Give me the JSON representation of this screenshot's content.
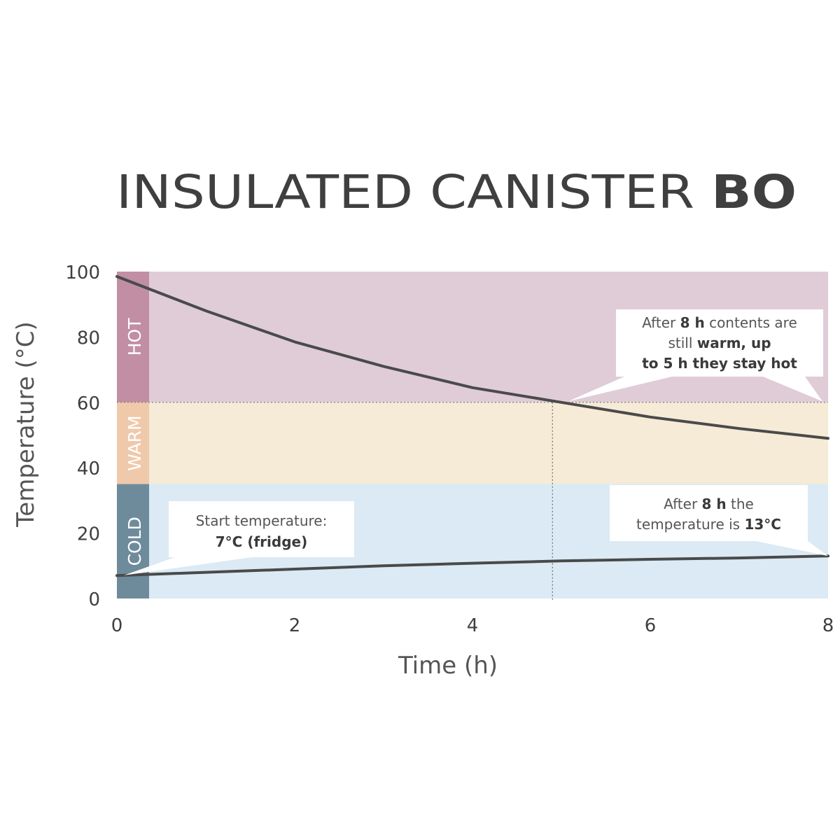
{
  "chart_data": {
    "type": "line",
    "title": {
      "main": "INSULATED CANISTER",
      "brand": "BO"
    },
    "xlabel": "Time (h)",
    "ylabel": "Temperature (°C)",
    "xlim": [
      0,
      8
    ],
    "ylim": [
      0,
      100
    ],
    "x_ticks": [
      "0",
      "2",
      "4",
      "6",
      "8"
    ],
    "y_ticks": [
      "0",
      "20",
      "40",
      "60",
      "80",
      "100"
    ],
    "grid": false,
    "zones": [
      {
        "label": "HOT",
        "from": 60,
        "to": 100,
        "band_color": "#e0ccd6",
        "tab_color": "#c18ea3"
      },
      {
        "label": "WARM",
        "from": 35,
        "to": 60,
        "band_color": "#f5ebd6",
        "tab_color": "#f0c9ab"
      },
      {
        "label": "COLD",
        "from": 0,
        "to": 35,
        "band_color": "#dbeaf4",
        "tab_color": "#6e8b9b"
      }
    ],
    "series": [
      {
        "color": "#4a4a4a",
        "x": [
          0,
          1,
          2,
          3,
          4,
          5,
          6,
          7,
          8
        ],
        "y": [
          98.5,
          88,
          78.5,
          71,
          64.5,
          60,
          55.5,
          52,
          49
        ]
      },
      {
        "color": "#4a4a4a",
        "x": [
          0,
          1,
          2,
          3,
          4,
          5,
          6,
          7,
          8
        ],
        "y": [
          7,
          8,
          9,
          10,
          10.8,
          11.5,
          12,
          12.4,
          13
        ]
      }
    ],
    "reference_lines": [
      {
        "orientation": "horizontal",
        "value": 60,
        "style": "dotted"
      },
      {
        "orientation": "vertical",
        "value": 4.9,
        "style": "dotted"
      }
    ],
    "annotations": [
      {
        "id": "hot",
        "lines": [
          [
            {
              "t": "After ",
              "b": false
            },
            {
              "t": "8 h",
              "b": true
            },
            {
              "t": " contents are",
              "b": false
            }
          ],
          [
            {
              "t": "still ",
              "b": false
            },
            {
              "t": "warm, up",
              "b": true
            }
          ],
          [
            {
              "t": "to 5 h they stay hot",
              "b": true
            }
          ]
        ]
      },
      {
        "id": "start",
        "lines": [
          [
            {
              "t": "Start temperature:",
              "b": false
            }
          ],
          [
            {
              "t": "7°C (fridge)",
              "b": true
            }
          ]
        ]
      },
      {
        "id": "end",
        "lines": [
          [
            {
              "t": "After ",
              "b": false
            },
            {
              "t": "8 h",
              "b": true
            },
            {
              "t": " the",
              "b": false
            }
          ],
          [
            {
              "t": "temperature is ",
              "b": false
            },
            {
              "t": "13°C",
              "b": true
            }
          ]
        ]
      }
    ]
  }
}
